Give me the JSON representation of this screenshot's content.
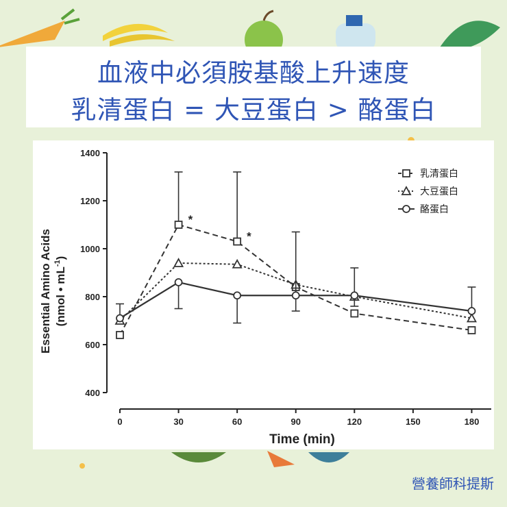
{
  "title": {
    "line1": "血液中必須胺基酸上升速度",
    "line2": "乳清蛋白 = 大豆蛋白 > 酪蛋白"
  },
  "footer": {
    "brand": "營養師科提斯"
  },
  "colors": {
    "title": "#2f55b5",
    "background": "#e8f1d9",
    "series": "#333333"
  },
  "chart_data": {
    "type": "line",
    "xlabel": "Time (min)",
    "ylabel_line1": "Essential Amino Acids",
    "ylabel_line2": "(nmol • mL",
    "ylabel_sup": "-1",
    "ylabel_close": ")",
    "x": [
      0,
      30,
      60,
      90,
      120,
      180
    ],
    "xticks": [
      0,
      30,
      60,
      90,
      120,
      150,
      180
    ],
    "xticklabels": [
      "0",
      "30",
      "60",
      "90",
      "120",
      "150",
      "180"
    ],
    "xlim": [
      0,
      190
    ],
    "yticks": [
      400,
      600,
      800,
      1000,
      1200,
      1400
    ],
    "yticklabels": [
      "400",
      "600",
      "800",
      "1000",
      "1200",
      "1400"
    ],
    "ylim": [
      400,
      1400
    ],
    "legend_position": "top-right",
    "series": [
      {
        "name": "乳清蛋白",
        "marker": "square",
        "dash": "dashed",
        "values": [
          640,
          1100,
          1030,
          840,
          730,
          660
        ],
        "err_upper": [
          null,
          1320,
          1320,
          null,
          null,
          null
        ]
      },
      {
        "name": "大豆蛋白",
        "marker": "triangle",
        "dash": "dotted",
        "values": [
          700,
          940,
          935,
          850,
          800,
          710
        ],
        "err_upper": [
          null,
          null,
          null,
          null,
          null,
          null
        ]
      },
      {
        "name": "酪蛋白",
        "marker": "circle",
        "dash": "solid",
        "values": [
          710,
          860,
          805,
          805,
          805,
          740
        ],
        "err_upper": [
          770,
          null,
          null,
          1070,
          920,
          840
        ],
        "err_lower": [
          null,
          750,
          690,
          740,
          760,
          null
        ]
      }
    ],
    "annotations": [
      {
        "x": 30,
        "y": 1100,
        "text": "*"
      },
      {
        "x": 60,
        "y": 1030,
        "text": "*"
      }
    ]
  }
}
